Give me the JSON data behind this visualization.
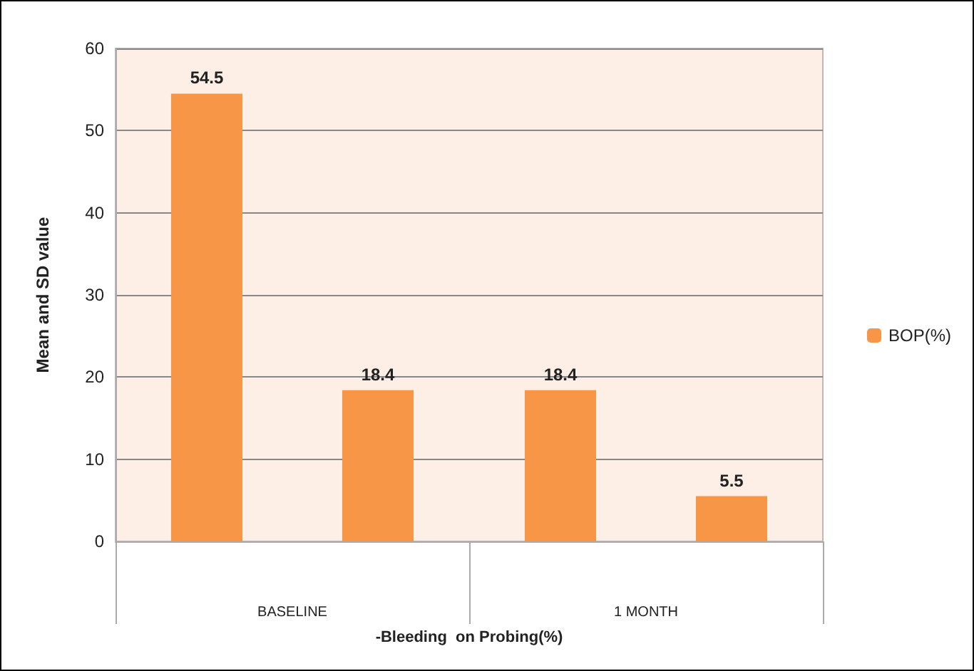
{
  "chart_data": {
    "type": "bar",
    "xlabel": "-Bleeding  on Probing(%)",
    "ylabel": "Mean and SD value",
    "categories": [
      "BASELINE",
      "1 MONTH"
    ],
    "series": [
      {
        "name": "BOP(%)",
        "color": "#f79646",
        "values": [
          54.5,
          18.4
        ]
      },
      {
        "color": "#f79646",
        "values": [
          18.4,
          5.5
        ]
      }
    ],
    "ylim": [
      0,
      60
    ],
    "yticks": [
      0,
      10,
      20,
      30,
      40,
      50,
      60
    ],
    "grid": "y",
    "legend": "right",
    "data_labels": true
  }
}
